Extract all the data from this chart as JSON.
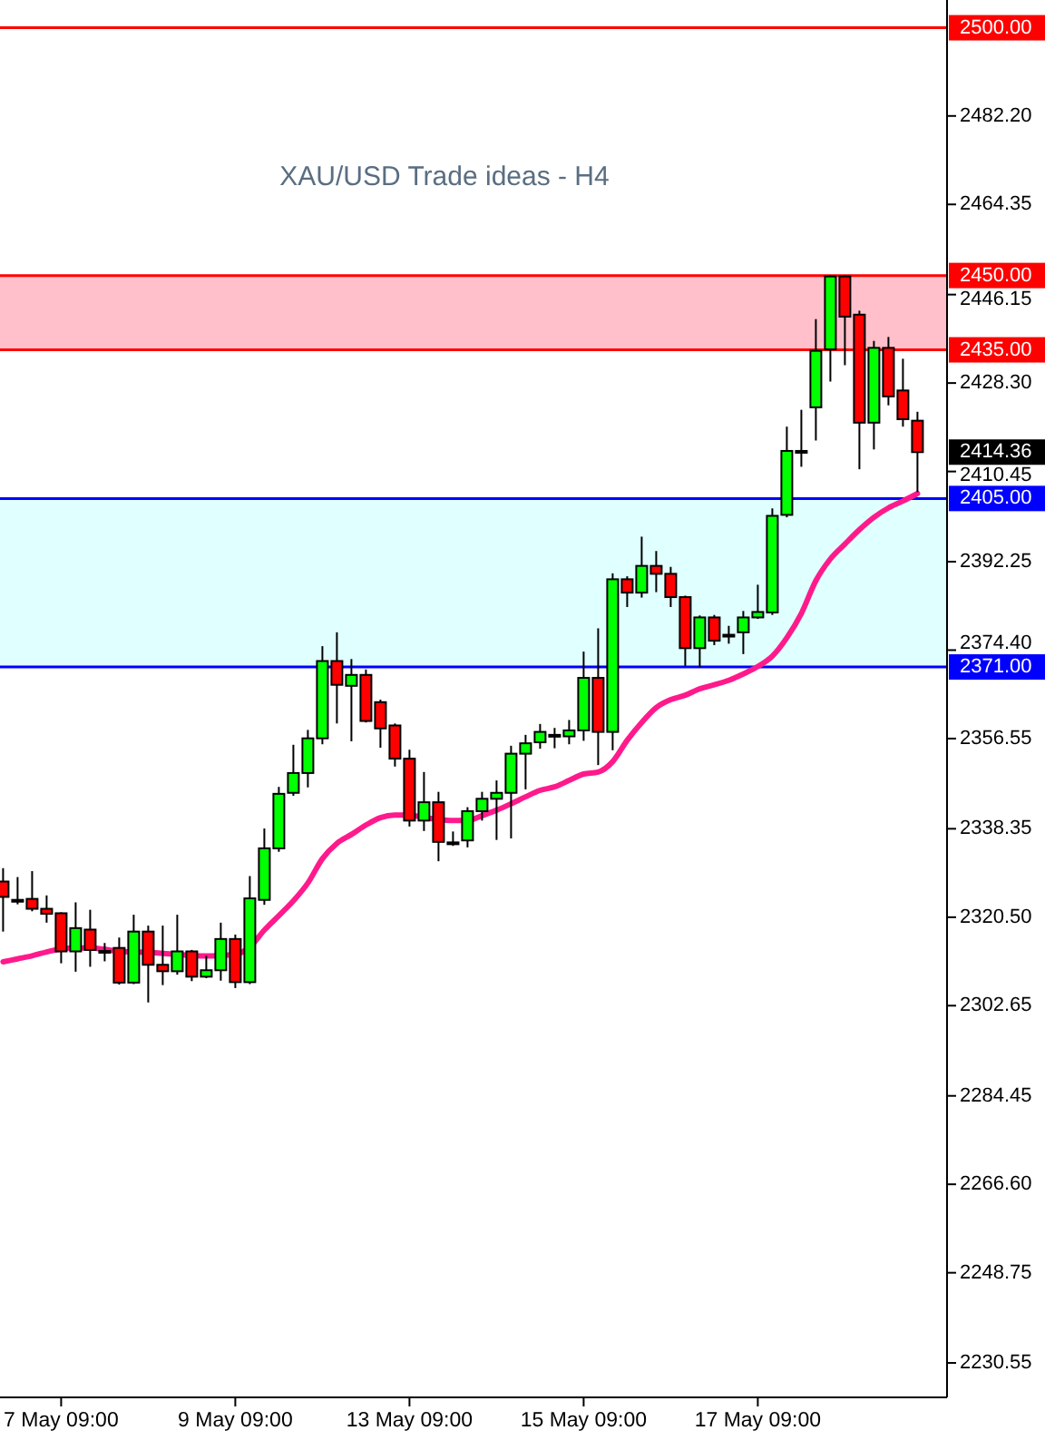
{
  "chart_data": {
    "type": "candlestick",
    "title": "XAU/USD Trade ideas - H4",
    "categories": [
      null,
      null,
      null,
      null,
      "7 May 09:00",
      null,
      null,
      null,
      null,
      null,
      null,
      null,
      null,
      null,
      null,
      null,
      "9 May 09:00",
      null,
      null,
      null,
      null,
      null,
      null,
      null,
      null,
      null,
      null,
      null,
      "13 May 09:00",
      null,
      null,
      null,
      null,
      null,
      null,
      null,
      null,
      null,
      null,
      null,
      "15 May 09:00",
      null,
      null,
      null,
      null,
      null,
      null,
      null,
      null,
      null,
      null,
      null,
      "17 May 09:00",
      null,
      null,
      null,
      null,
      null,
      null,
      null,
      null,
      null,
      null,
      null
    ],
    "ohlc": [
      [
        2327.7,
        2330.4,
        2317.6,
        2324.6
      ],
      [
        2324.0,
        2328.6,
        2323.1,
        2324.0
      ],
      [
        2324.2,
        2329.8,
        2321.7,
        2322.2
      ],
      [
        2322.2,
        2324.9,
        2319.4,
        2321.2
      ],
      [
        2321.3,
        2321.5,
        2311.2,
        2313.6
      ],
      [
        2313.6,
        2323.5,
        2309.5,
        2318.3
      ],
      [
        2318.0,
        2322.0,
        2310.5,
        2313.9
      ],
      [
        2313.7,
        2315.3,
        2311.6,
        2313.7
      ],
      [
        2314.3,
        2316.4,
        2306.9,
        2307.3
      ],
      [
        2307.3,
        2321.0,
        2307.0,
        2317.6
      ],
      [
        2317.6,
        2318.8,
        2303.3,
        2310.9
      ],
      [
        2310.9,
        2318.8,
        2306.8,
        2309.6
      ],
      [
        2309.6,
        2321.0,
        2308.9,
        2313.6
      ],
      [
        2313.6,
        2313.9,
        2307.6,
        2308.5
      ],
      [
        2308.5,
        2312.7,
        2308.2,
        2309.8
      ],
      [
        2309.8,
        2319.4,
        2307.7,
        2316.1
      ],
      [
        2316.1,
        2317.0,
        2306.2,
        2307.4
      ],
      [
        2307.4,
        2328.8,
        2307.0,
        2324.3
      ],
      [
        2324.0,
        2338.4,
        2323.0,
        2334.4
      ],
      [
        2334.4,
        2346.8,
        2333.7,
        2345.4
      ],
      [
        2345.6,
        2355.3,
        2345.0,
        2349.6
      ],
      [
        2349.6,
        2358.3,
        2346.7,
        2356.6
      ],
      [
        2356.6,
        2375.2,
        2355.4,
        2372.2
      ],
      [
        2372.2,
        2378.0,
        2359.6,
        2367.4
      ],
      [
        2367.2,
        2372.6,
        2356.0,
        2369.4
      ],
      [
        2369.4,
        2370.5,
        2359.8,
        2360.1
      ],
      [
        2363.9,
        2364.4,
        2354.7,
        2358.6
      ],
      [
        2359.2,
        2359.6,
        2350.9,
        2352.5
      ],
      [
        2352.5,
        2354.3,
        2338.8,
        2340.0
      ],
      [
        2340.0,
        2349.8,
        2337.9,
        2343.7
      ],
      [
        2343.7,
        2345.8,
        2331.8,
        2335.7
      ],
      [
        2335.6,
        2337.8,
        2334.9,
        2335.6
      ],
      [
        2336.0,
        2342.7,
        2334.6,
        2341.9
      ],
      [
        2341.9,
        2345.8,
        2340.0,
        2344.4
      ],
      [
        2344.4,
        2348.1,
        2336.1,
        2345.6
      ],
      [
        2345.6,
        2355.1,
        2336.4,
        2353.5
      ],
      [
        2353.5,
        2357.3,
        2346.3,
        2355.6
      ],
      [
        2355.8,
        2359.5,
        2354.5,
        2357.9
      ],
      [
        2357.3,
        2358.7,
        2354.6,
        2357.3
      ],
      [
        2357.0,
        2360.3,
        2355.4,
        2358.2
      ],
      [
        2358.2,
        2374.1,
        2356.1,
        2368.8
      ],
      [
        2368.8,
        2378.8,
        2351.2,
        2357.9
      ],
      [
        2357.9,
        2389.9,
        2354.2,
        2388.7
      ],
      [
        2388.7,
        2389.3,
        2383.1,
        2386.0
      ],
      [
        2386.0,
        2397.3,
        2385.0,
        2391.4
      ],
      [
        2391.4,
        2394.4,
        2386.1,
        2389.8
      ],
      [
        2389.8,
        2391.2,
        2383.1,
        2385.1
      ],
      [
        2385.1,
        2385.4,
        2371.2,
        2374.8
      ],
      [
        2374.8,
        2381.4,
        2370.9,
        2381.0
      ],
      [
        2381.0,
        2381.5,
        2375.4,
        2376.3
      ],
      [
        2377.5,
        2379.3,
        2375.7,
        2377.5
      ],
      [
        2378.0,
        2382.3,
        2373.6,
        2381.0
      ],
      [
        2381.0,
        2387.6,
        2380.7,
        2382.1
      ],
      [
        2382.0,
        2403.0,
        2381.5,
        2401.5
      ],
      [
        2401.7,
        2419.5,
        2401.2,
        2414.6
      ],
      [
        2414.6,
        2422.9,
        2411.4,
        2414.6
      ],
      [
        2423.4,
        2441.2,
        2416.7,
        2434.8
      ],
      [
        2435.1,
        2450.0,
        2428.6,
        2449.8
      ],
      [
        2449.8,
        2450.0,
        2431.9,
        2441.7
      ],
      [
        2442.1,
        2442.9,
        2410.9,
        2420.3
      ],
      [
        2420.3,
        2436.8,
        2414.9,
        2435.4
      ],
      [
        2435.4,
        2437.6,
        2423.8,
        2425.6
      ],
      [
        2426.8,
        2433.2,
        2419.5,
        2421.0
      ],
      [
        2420.7,
        2422.5,
        2406.3,
        2414.36
      ]
    ],
    "colors": [
      "#ff0000",
      "#000000",
      "#ff0000",
      "#ff0000",
      "#ff0000",
      "#00ff00",
      "#ff0000",
      "#000000",
      "#ff0000",
      "#00ff00",
      "#ff0000",
      "#ff0000",
      "#00ff00",
      "#ff0000",
      "#00ff00",
      "#00ff00",
      "#ff0000",
      "#00ff00",
      "#00ff00",
      "#00ff00",
      "#00ff00",
      "#00ff00",
      "#00ff00",
      "#ff0000",
      "#00ff00",
      "#ff0000",
      "#ff0000",
      "#ff0000",
      "#ff0000",
      "#00ff00",
      "#ff0000",
      "#000000",
      "#00ff00",
      "#00ff00",
      "#00ff00",
      "#00ff00",
      "#00ff00",
      "#00ff00",
      "#000000",
      "#00ff00",
      "#00ff00",
      "#ff0000",
      "#00ff00",
      "#ff0000",
      "#00ff00",
      "#ff0000",
      "#ff0000",
      "#ff0000",
      "#00ff00",
      "#ff0000",
      "#000000",
      "#00ff00",
      "#00ff00",
      "#00ff00",
      "#00ff00",
      "#000000",
      "#00ff00",
      "#00ff00",
      "#ff0000",
      "#ff0000",
      "#00ff00",
      "#ff0000",
      "#ff0000",
      "#ff0000"
    ],
    "series": [
      {
        "type": "line",
        "color": "#ff1a8c",
        "values": [
          2311.5,
          2312.1,
          2312.7,
          2313.5,
          2314.1,
          2314.3,
          2314.3,
          2314.0,
          2313.6,
          2313.5,
          2313.4,
          2313.2,
          2313.0,
          2312.8,
          2312.7,
          2312.8,
          2313.0,
          2314.5,
          2317.9,
          2320.8,
          2323.8,
          2327.4,
          2332.3,
          2335.4,
          2337.2,
          2339.1,
          2340.6,
          2341.1,
          2341.1,
          2340.6,
          2340.2,
          2340.0,
          2340.0,
          2341.0,
          2342.1,
          2343.4,
          2344.8,
          2346.1,
          2346.8,
          2348.1,
          2349.4,
          2349.8,
          2351.9,
          2356.2,
          2359.8,
          2362.8,
          2364.4,
          2365.3,
          2366.6,
          2367.4,
          2368.3,
          2369.6,
          2371.1,
          2373.2,
          2376.9,
          2381.8,
          2388.4,
          2392.8,
          2395.8,
          2398.7,
          2401.2,
          2403.1,
          2404.5,
          2406.0
        ]
      }
    ],
    "ylim": [
      2223.6,
      2505.6
    ],
    "yticks": [
      {
        "value": 2482.2,
        "label": "2482.20"
      },
      {
        "value": 2464.35,
        "label": "2464.35"
      },
      {
        "value": 2446.15,
        "label": "2446.15"
      },
      {
        "value": 2428.3,
        "label": "2428.30"
      },
      {
        "value": 2410.45,
        "label": "2410.45"
      },
      {
        "value": 2392.25,
        "label": "2392.25"
      },
      {
        "value": 2374.4,
        "label": "2374.40"
      },
      {
        "value": 2356.55,
        "label": "2356.55"
      },
      {
        "value": 2338.35,
        "label": "2338.35"
      },
      {
        "value": 2320.5,
        "label": "2320.50"
      },
      {
        "value": 2302.65,
        "label": "2302.65"
      },
      {
        "value": 2284.45,
        "label": "2284.45"
      },
      {
        "value": 2266.6,
        "label": "2266.60"
      },
      {
        "value": 2248.75,
        "label": "2248.75"
      },
      {
        "value": 2230.55,
        "label": "2230.55"
      }
    ],
    "bands": [
      {
        "axis": "y",
        "from": 2435,
        "to": 2450,
        "color": "#ffc0cb"
      },
      {
        "axis": "y",
        "from": 2371,
        "to": 2405,
        "color": "#e0ffff"
      }
    ],
    "ref_lines": [
      {
        "axis": "y",
        "value": 2500,
        "label": "2500.00",
        "color": "#ff0000"
      },
      {
        "axis": "y",
        "value": 2450,
        "label": "2450.00",
        "color": "#ff0000"
      },
      {
        "axis": "y",
        "value": 2435,
        "label": "2435.00",
        "color": "#ff0000"
      },
      {
        "axis": "y",
        "value": 2405,
        "label": "2405.00",
        "color": "#0000ff"
      },
      {
        "axis": "y",
        "value": 2371,
        "label": "2371.00",
        "color": "#0000ff"
      }
    ],
    "annotations": [
      "2414.36"
    ]
  }
}
